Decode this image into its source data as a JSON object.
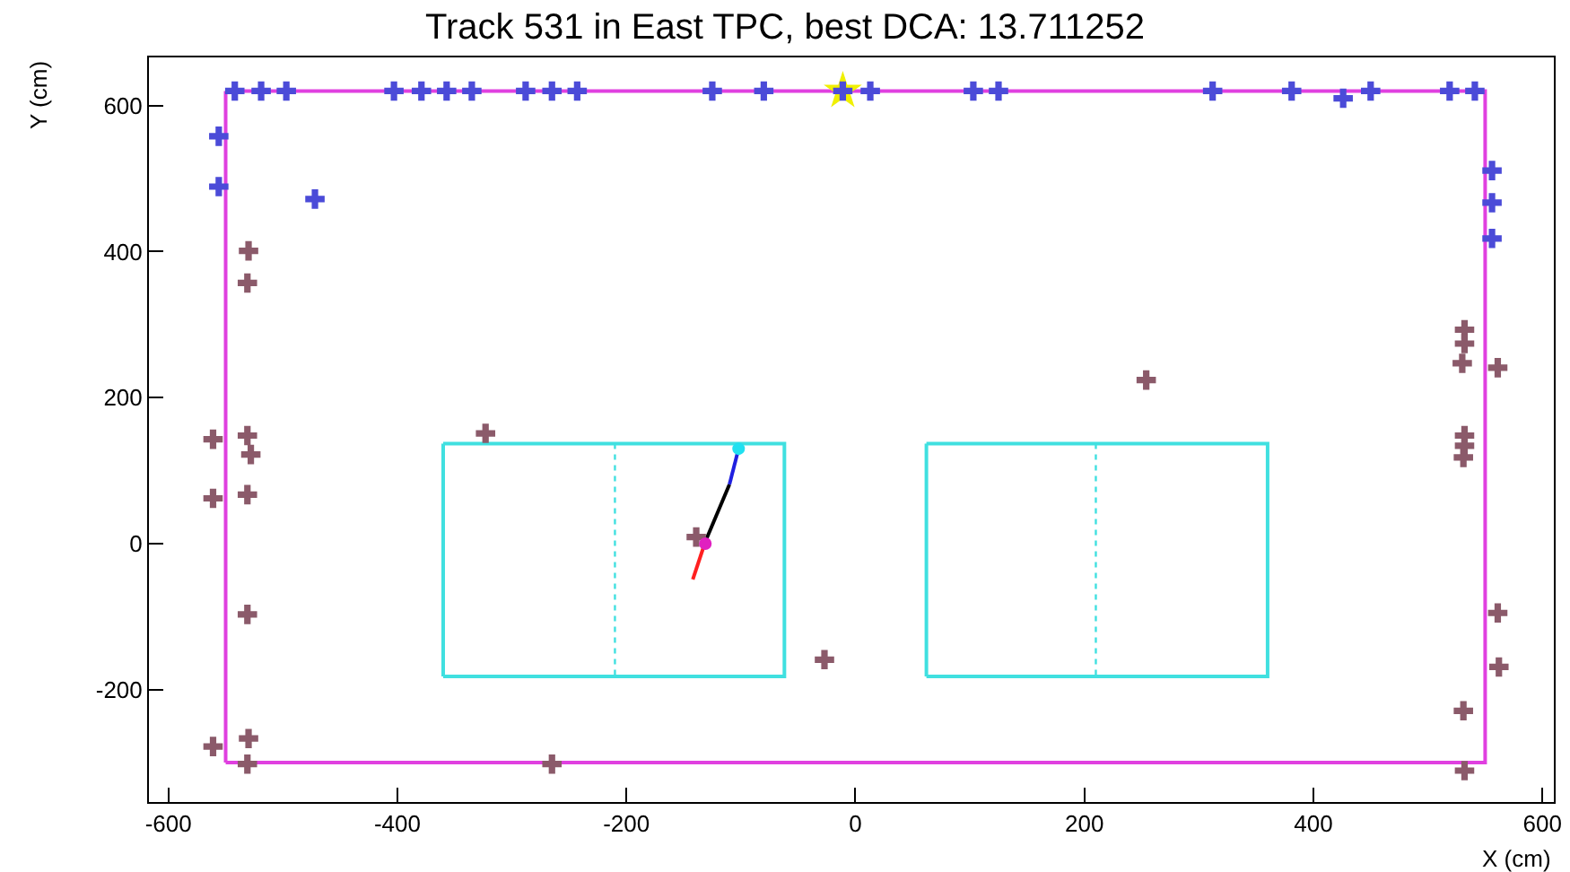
{
  "chart_data": {
    "type": "scatter",
    "title": "Track 531 in East TPC, best DCA: 13.711252",
    "xlabel": "X (cm)",
    "ylabel": "Y (cm)",
    "xlim": [
      -617,
      610
    ],
    "ylim": [
      -354,
      666
    ],
    "xticks": [
      -600,
      -400,
      -200,
      0,
      200,
      400,
      600
    ],
    "yticks": [
      -200,
      0,
      200,
      400,
      600
    ],
    "grid": false,
    "series": [
      {
        "type": "line",
        "color": "#e040e0",
        "marker": "none",
        "line_style": "solid",
        "x": [
          -550,
          550,
          550,
          -550
        ],
        "values": [
          620,
          620,
          -300,
          -300
        ]
      },
      {
        "type": "line",
        "color": "#e040e0",
        "marker": "none",
        "line_style": "solid",
        "x": [
          -550,
          -550
        ],
        "values": [
          -300,
          620
        ]
      },
      {
        "type": "line",
        "color": "#40e0e0",
        "marker": "none",
        "line_style": "solid",
        "x": [
          -360,
          -62,
          -62,
          -360
        ],
        "values": [
          137,
          137,
          -182,
          -182
        ]
      },
      {
        "type": "line",
        "color": "#40e0e0",
        "marker": "none",
        "line_style": "solid",
        "x": [
          -360,
          -360
        ],
        "values": [
          -182,
          137
        ]
      },
      {
        "type": "line",
        "color": "#40e0e0",
        "marker": "none",
        "line_style": "solid",
        "x": [
          62,
          360,
          360,
          62
        ],
        "values": [
          137,
          137,
          -182,
          -182
        ]
      },
      {
        "type": "line",
        "color": "#40e0e0",
        "marker": "none",
        "line_style": "solid",
        "x": [
          62,
          62
        ],
        "values": [
          -182,
          137
        ]
      },
      {
        "type": "line",
        "color": "#40e0e0",
        "marker": "none",
        "line_style": "dotted",
        "x": [
          -210,
          -210
        ],
        "values": [
          137,
          -182
        ]
      },
      {
        "type": "line",
        "color": "#40e0e0",
        "marker": "none",
        "line_style": "dotted",
        "x": [
          210,
          210
        ],
        "values": [
          137,
          -182
        ]
      },
      {
        "type": "line",
        "color": "#ff2020",
        "marker": "none",
        "line_style": "solid",
        "x": [
          -142,
          -131
        ],
        "values": [
          -49,
          3
        ]
      },
      {
        "type": "line",
        "color": "#000000",
        "marker": "none",
        "line_style": "solid",
        "x": [
          -131,
          -110
        ],
        "values": [
          3,
          81
        ]
      },
      {
        "type": "line",
        "color": "#2020e0",
        "marker": "none",
        "line_style": "solid",
        "x": [
          -110,
          -102
        ],
        "values": [
          81,
          130
        ]
      },
      {
        "type": "scatter",
        "color": "#f0f000",
        "marker": "star",
        "x": [
          -11
        ],
        "values": [
          620
        ]
      },
      {
        "color": "#4b4bd8",
        "marker": "cross",
        "x": [
          -542,
          -519,
          -497,
          -403,
          -379,
          -357,
          -335,
          -288,
          -265,
          -243,
          -125,
          -80,
          -11,
          13,
          103,
          125,
          312,
          381,
          426,
          450,
          519,
          541,
          -556,
          -556,
          -472,
          556,
          556,
          556
        ],
        "values": [
          620,
          620,
          620,
          620,
          620,
          620,
          620,
          620,
          620,
          620,
          620,
          620,
          620,
          620,
          620,
          620,
          620,
          620,
          610,
          620,
          620,
          620,
          558,
          489,
          472,
          511,
          467,
          418
        ]
      },
      {
        "color": "#8b5a6a",
        "marker": "cross",
        "x": [
          -530,
          -531,
          -561,
          -531,
          -528,
          -561,
          -531,
          -531,
          -323,
          -139,
          -27,
          -561,
          -530,
          -531,
          -265,
          254,
          532,
          532,
          530,
          561,
          532,
          532,
          531,
          561,
          562,
          531,
          532
        ],
        "values": [
          401,
          357,
          143,
          148,
          122,
          62,
          67,
          -97,
          151,
          9,
          -159,
          -278,
          -267,
          -302,
          -302,
          224,
          293,
          274,
          247,
          241,
          148,
          134,
          118,
          -95,
          -169,
          -229,
          -311
        ]
      },
      {
        "type": "scatter",
        "color": "#e020c0",
        "marker": "circle",
        "x": [
          -131
        ],
        "values": [
          0
        ]
      },
      {
        "type": "scatter",
        "color": "#20e0f0",
        "marker": "circle",
        "x": [
          -102
        ],
        "values": [
          130
        ]
      }
    ]
  }
}
